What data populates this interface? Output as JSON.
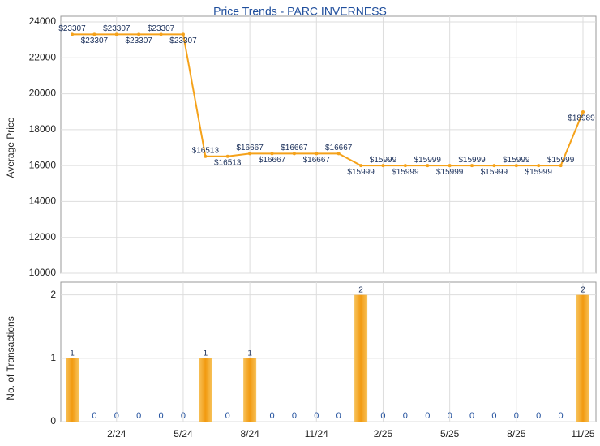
{
  "chart_data": [
    {
      "type": "line",
      "title": "Price Trends - PARC INVERNESS",
      "y_label": "Average Price",
      "values": [
        23307,
        23307,
        23307,
        23307,
        23307,
        23307,
        16513,
        16513,
        16667,
        16667,
        16667,
        16667,
        16667,
        15999,
        15999,
        15999,
        15999,
        15999,
        15999,
        15999,
        15999,
        15999,
        15999,
        18989
      ],
      "value_labels": [
        "$23307",
        "$23307",
        "$23307",
        "$23307",
        "$23307",
        "$23307",
        "$16513",
        "$16513",
        "$16667",
        "$16667",
        "$16667",
        "$16667",
        "$16667",
        "$15999",
        "$15999",
        "$15999",
        "$15999",
        "$15999",
        "$15999",
        "$15999",
        "$15999",
        "$15999",
        "$15999",
        "$18989"
      ],
      "color": "#f5a21a",
      "ylim": [
        10000,
        24000
      ],
      "yticks": [
        10000,
        12000,
        14000,
        16000,
        18000,
        20000,
        22000,
        24000
      ],
      "grid": true
    },
    {
      "type": "bar",
      "y_label": "No. of Transactions",
      "categories": [
        null,
        null,
        "2/24",
        null,
        null,
        "5/24",
        null,
        null,
        "8/24",
        null,
        null,
        "11/24",
        null,
        null,
        "2/25",
        null,
        null,
        "5/25",
        null,
        null,
        "8/25",
        null,
        null,
        "11/25"
      ],
      "values": [
        1,
        0,
        0,
        0,
        0,
        0,
        1,
        0,
        1,
        0,
        0,
        0,
        0,
        2,
        0,
        0,
        0,
        0,
        0,
        0,
        0,
        0,
        0,
        2
      ],
      "color": "#f5a21a",
      "ylim": [
        0,
        2.2
      ],
      "yticks": [
        0,
        1,
        2
      ],
      "grid": true
    }
  ]
}
